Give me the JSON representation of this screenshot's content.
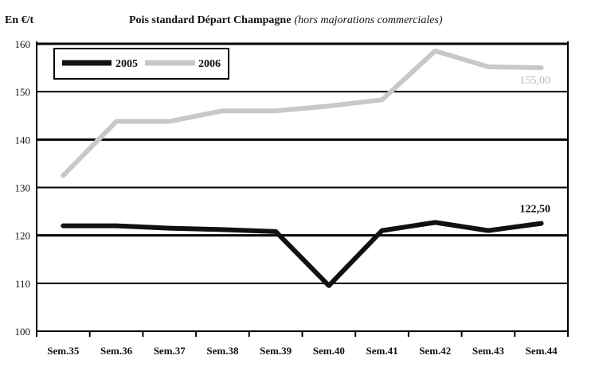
{
  "chart_data": {
    "type": "line",
    "unit_label": "En €/t",
    "title": "Pois standard Départ Champagne",
    "title_note": "(hors majorations commerciales)",
    "categories": [
      "Sem.35",
      "Sem.36",
      "Sem.37",
      "Sem.38",
      "Sem.39",
      "Sem.40",
      "Sem.41",
      "Sem.42",
      "Sem.43",
      "Sem.44"
    ],
    "ylim": [
      100,
      160
    ],
    "yticks": [
      100,
      110,
      120,
      130,
      140,
      150,
      160
    ],
    "grid": true,
    "legend_position": "top-left",
    "series": [
      {
        "name": "2005",
        "color": "#111111",
        "values": [
          122,
          122,
          121.5,
          121.2,
          120.8,
          109.5,
          121,
          122.7,
          121,
          122.5
        ],
        "end_label": "122,50"
      },
      {
        "name": "2006",
        "color": "#c8c8c8",
        "values": [
          132.5,
          143.8,
          143.8,
          146,
          146,
          147,
          148.3,
          158.5,
          155.2,
          155
        ],
        "end_label": "155,00"
      }
    ]
  }
}
